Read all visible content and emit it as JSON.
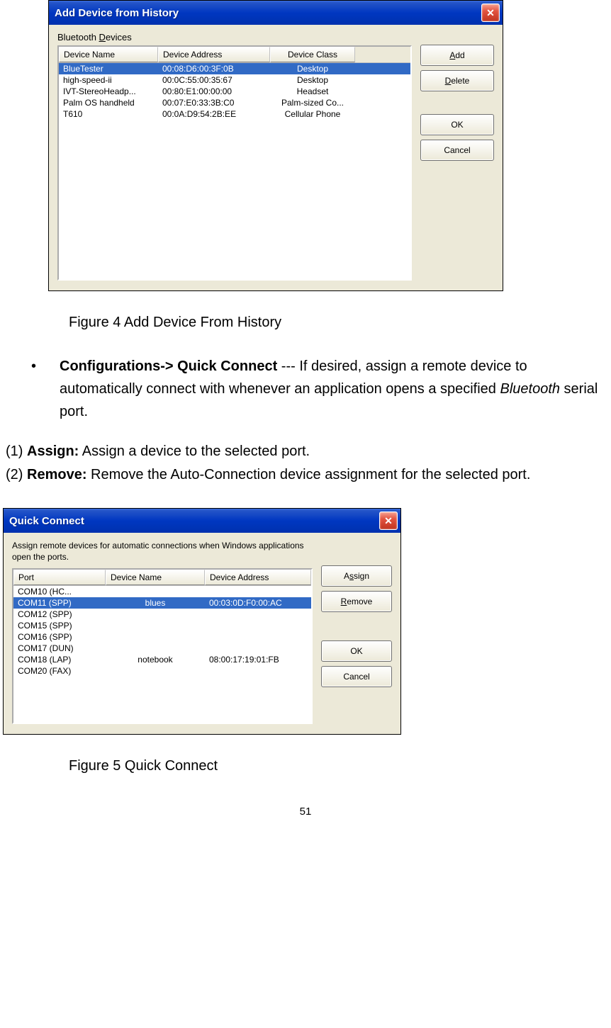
{
  "dialog1": {
    "title": "Add Device from History",
    "group_label": "Bluetooth Devices",
    "columns": [
      "Device Name",
      "Device Address",
      "Device Class"
    ],
    "rows": [
      {
        "name": "BlueTester",
        "addr": "00:08:D6:00:3F:0B",
        "cls": "Desktop",
        "selected": true
      },
      {
        "name": "high-speed-ii",
        "addr": "00:0C:55:00:35:67",
        "cls": "Desktop",
        "selected": false
      },
      {
        "name": "IVT-StereoHeadp...",
        "addr": "00:80:E1:00:00:00",
        "cls": "Headset",
        "selected": false
      },
      {
        "name": "Palm OS handheld",
        "addr": "00:07:E0:33:3B:C0",
        "cls": "Palm-sized Co...",
        "selected": false
      },
      {
        "name": "T610",
        "addr": "00:0A:D9:54:2B:EE",
        "cls": "Cellular Phone",
        "selected": false
      }
    ],
    "buttons": {
      "add": "Add",
      "delete": "Delete",
      "ok": "OK",
      "cancel": "Cancel"
    }
  },
  "caption1": "Figure 4 Add Device From History",
  "bullet": {
    "lead_bold": "Configurations-> Quick Connect",
    "rest": " --- If desired, assign a remote device to automatically connect with whenever an application opens a specified ",
    "italic": "Bluetooth",
    "tail": " serial port."
  },
  "num1": {
    "n": "(1) ",
    "b": "Assign:",
    "t": " Assign a device to the selected port."
  },
  "num2": {
    "n": "(2) ",
    "b": "Remove:",
    "t": " Remove the Auto-Connection device assignment for the selected port."
  },
  "dialog2": {
    "title": "Quick Connect",
    "intro": "Assign remote devices for automatic connections when Windows applications open the ports.",
    "columns": [
      "Port",
      "Device Name",
      "Device Address"
    ],
    "rows": [
      {
        "port": "COM10 (HC...",
        "name": "",
        "addr": "",
        "selected": false
      },
      {
        "port": "COM11 (SPP)",
        "name": "blues",
        "addr": "00:03:0D:F0:00:AC",
        "selected": true
      },
      {
        "port": "COM12 (SPP)",
        "name": "",
        "addr": "",
        "selected": false
      },
      {
        "port": "COM15 (SPP)",
        "name": "",
        "addr": "",
        "selected": false
      },
      {
        "port": "COM16 (SPP)",
        "name": "",
        "addr": "",
        "selected": false
      },
      {
        "port": "COM17 (DUN)",
        "name": "",
        "addr": "",
        "selected": false
      },
      {
        "port": "COM18 (LAP)",
        "name": "notebook",
        "addr": "08:00:17:19:01:FB",
        "selected": false
      },
      {
        "port": "COM20 (FAX)",
        "name": "",
        "addr": "",
        "selected": false
      }
    ],
    "buttons": {
      "assign": "Assign",
      "remove": "Remove",
      "ok": "OK",
      "cancel": "Cancel"
    }
  },
  "caption2": "Figure 5 Quick Connect",
  "page_number": "51",
  "colors": {
    "titlebar_start": "#3a6ee0",
    "titlebar_end": "#0031ae",
    "dialog_bg": "#ece9d8",
    "selection": "#316ac5",
    "close_bg": "#e25340"
  }
}
